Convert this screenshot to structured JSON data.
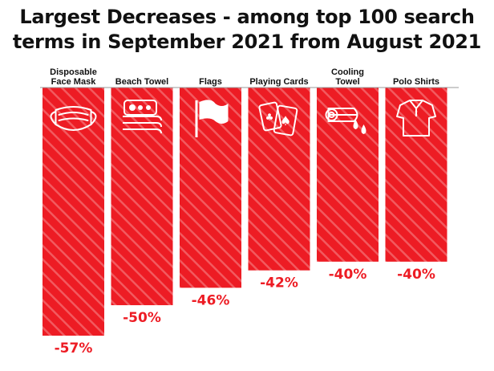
{
  "title_lines": [
    "Largest Decreases - among top 100 search",
    "terms in September 2021 from August 2021"
  ],
  "colors": {
    "bar": "#ed1c24",
    "stripe": "#f25a5f",
    "value_label": "#ed1c24",
    "baseline": "#999999",
    "icon": "#ffffff"
  },
  "chart_data": {
    "type": "bar",
    "title": "Largest Decreases - among top 100 search terms in September 2021 from August 2021",
    "categories": [
      {
        "lines": [
          "Disposable",
          "Face Mask"
        ],
        "icon": "face-mask-icon"
      },
      {
        "lines": [
          "Beach Towel"
        ],
        "icon": "beach-towel-icon"
      },
      {
        "lines": [
          "Flags"
        ],
        "icon": "flag-icon"
      },
      {
        "lines": [
          "Playing Cards"
        ],
        "icon": "playing-cards-icon"
      },
      {
        "lines": [
          "Cooling",
          "Towel"
        ],
        "icon": "cooling-towel-icon"
      },
      {
        "lines": [
          "Polo Shirts"
        ],
        "icon": "polo-shirt-icon"
      }
    ],
    "values": [
      -57,
      -50,
      -46,
      -42,
      -40,
      -40
    ],
    "value_labels": [
      "-57%",
      "-50%",
      "-46%",
      "-42%",
      "-40%",
      "-40%"
    ],
    "ylim": [
      -60,
      0
    ],
    "orientation": "bars hang down from top baseline",
    "grid": false,
    "legend": "none"
  }
}
